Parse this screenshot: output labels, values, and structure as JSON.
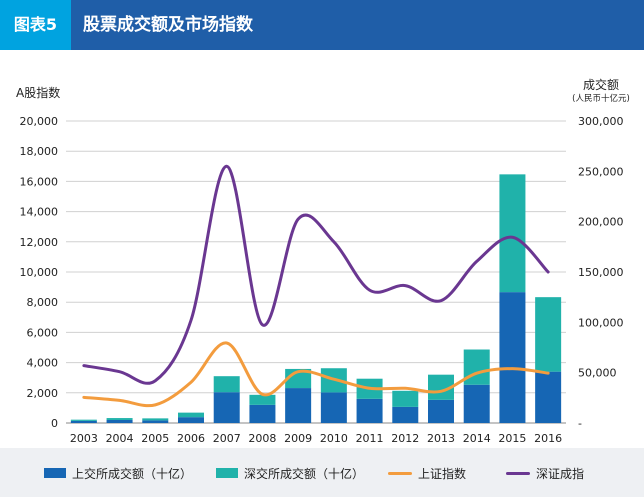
{
  "header": {
    "figure_label": "图表5",
    "title": "股票成交额及市场指数"
  },
  "colors": {
    "header_bg": "#1f5ea8",
    "label_bg": "#00a3e0",
    "sh_turnover": "#1666b4",
    "sz_turnover": "#20b2aa",
    "sh_index": "#f39c3e",
    "sz_index": "#6a3791"
  },
  "chart_data": {
    "type": "bar",
    "categories": [
      "2003",
      "2004",
      "2005",
      "2006",
      "2007",
      "2008",
      "2009",
      "2010",
      "2011",
      "2012",
      "2013",
      "2014",
      "2015",
      "2016"
    ],
    "left_axis": {
      "title": "A股指数",
      "ylim": [
        0,
        20000
      ],
      "ticks": [
        "0",
        "2,000",
        "4,000",
        "6,000",
        "8,000",
        "10,000",
        "12,000",
        "14,000",
        "16,000",
        "18,000",
        "20,000"
      ]
    },
    "right_axis": {
      "title": "成交额",
      "unit": "(人民币十亿元)",
      "ylim": [
        0,
        300000
      ],
      "ticks": [
        "-",
        "50,000",
        "100,000",
        "150,000",
        "200,000",
        "250,000",
        "300,000"
      ]
    },
    "series": [
      {
        "name": "上交所成交额（十亿）",
        "kind": "stacked-bar",
        "axis": "right",
        "values": [
          2100,
          3000,
          2600,
          5800,
          30600,
          18000,
          34700,
          30400,
          24000,
          16000,
          23000,
          38000,
          130000,
          51000
        ]
      },
      {
        "name": "深交所成交额（十亿）",
        "kind": "stacked-bar",
        "axis": "right",
        "values": [
          1200,
          1900,
          2000,
          4500,
          15900,
          10000,
          19000,
          24000,
          20000,
          16000,
          25000,
          35000,
          117000,
          74000
        ]
      },
      {
        "name": "上证指数",
        "kind": "line",
        "axis": "left",
        "values": [
          1700,
          1500,
          1200,
          2700,
          5300,
          1900,
          3400,
          2900,
          2300,
          2300,
          2100,
          3300,
          3600,
          3300
        ]
      },
      {
        "name": "深证成指",
        "kind": "line",
        "axis": "left",
        "values": [
          3800,
          3400,
          2800,
          6800,
          17000,
          6500,
          13500,
          12000,
          8800,
          9100,
          8100,
          10700,
          12300,
          10000
        ]
      }
    ],
    "grid": true,
    "legend_position": "bottom"
  }
}
